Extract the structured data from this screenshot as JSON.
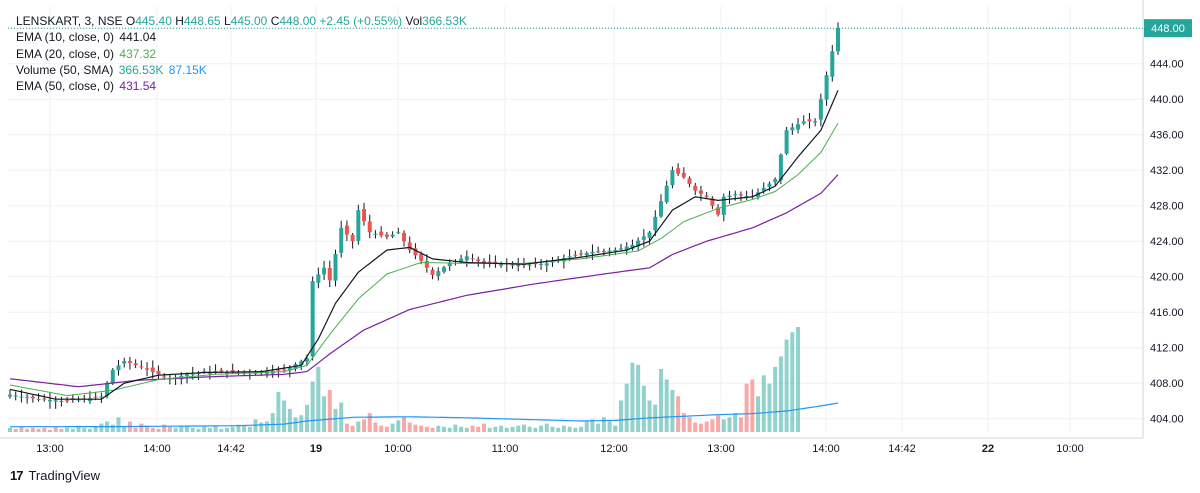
{
  "legend": {
    "symbol": "LENSKART, 3, NSE",
    "o_label": "O",
    "o": "445.40",
    "h_label": "H",
    "h": "448.65",
    "l_label": "L",
    "l": "445.00",
    "c_label": "C",
    "c": "448.00",
    "change": "+2.45 (+0.55%)",
    "vol_label": "Vol",
    "vol": "366.53K",
    "studies": [
      {
        "name": "EMA (10, close, 0)",
        "value": "441.04"
      },
      {
        "name": "EMA (20, close, 0)",
        "value": "437.32"
      },
      {
        "name": "Volume (50, SMA)",
        "value": "366.53K",
        "value2": "87.15K"
      },
      {
        "name": "EMA (50, close, 0)",
        "value": "431.54"
      }
    ]
  },
  "footer": {
    "brand": "TradingView",
    "logo": "tradingview-logo"
  },
  "colors": {
    "up": "#26a69a",
    "down": "#ef5350",
    "ema10": "#131722",
    "ema20": "#4caf50",
    "ema50": "#7b1fa2",
    "vol_sma": "#2196f3",
    "grid": "#eef0f3",
    "price_label": "#26a69a"
  },
  "chart_data": {
    "type": "candlestick",
    "symbol": "LENSKART",
    "interval": "3",
    "exchange": "NSE",
    "ylim": [
      402.5,
      450.5
    ],
    "y_ticks": [
      "404.00",
      "408.00",
      "412.00",
      "416.00",
      "420.00",
      "424.00",
      "428.00",
      "432.00",
      "436.00",
      "440.00",
      "444.00",
      "448.00"
    ],
    "x_ticks": [
      "13:00",
      "14:00",
      "14:42",
      "19",
      "10:00",
      "11:00",
      "12:00",
      "13:00",
      "14:00",
      "14:42",
      "22",
      "10:00"
    ],
    "last_price_label": "448.00",
    "last_price": 448.0,
    "close_path": [
      [
        0,
        406.7
      ],
      [
        4,
        406.3
      ],
      [
        9,
        406.0
      ],
      [
        13,
        406.2
      ],
      [
        16,
        406.5
      ],
      [
        18,
        409.5
      ],
      [
        20,
        410.5
      ],
      [
        23,
        409.8
      ],
      [
        26,
        409.0
      ],
      [
        28,
        408.5
      ],
      [
        31,
        409.0
      ],
      [
        35,
        409.3
      ],
      [
        39,
        409.3
      ],
      [
        43,
        409.2
      ],
      [
        48,
        409.5
      ],
      [
        52,
        410.8
      ],
      [
        53,
        419.5
      ],
      [
        55,
        421.0
      ],
      [
        56,
        419.6
      ],
      [
        58,
        425.5
      ],
      [
        60,
        424.0
      ],
      [
        61,
        427.5
      ],
      [
        63,
        425.0
      ],
      [
        66,
        424.5
      ],
      [
        68,
        425.0
      ],
      [
        70,
        423.0
      ],
      [
        72,
        421.8
      ],
      [
        74,
        420.2
      ],
      [
        77,
        421.5
      ],
      [
        80,
        422.3
      ],
      [
        83,
        421.5
      ],
      [
        86,
        421.4
      ],
      [
        90,
        421.3
      ],
      [
        94,
        421.5
      ],
      [
        98,
        422.3
      ],
      [
        102,
        422.8
      ],
      [
        106,
        423.0
      ],
      [
        109,
        423.6
      ],
      [
        112,
        425.0
      ],
      [
        114,
        428.5
      ],
      [
        116,
        432.0
      ],
      [
        118,
        431.2
      ],
      [
        120,
        429.7
      ],
      [
        122,
        429.0
      ],
      [
        124,
        427.0
      ],
      [
        125,
        429.0
      ],
      [
        127,
        429.3
      ],
      [
        130,
        429.0
      ],
      [
        134,
        431.0
      ],
      [
        136,
        436.5
      ],
      [
        139,
        437.5
      ],
      [
        141,
        437.5
      ],
      [
        142,
        440.0
      ],
      [
        144,
        445.4
      ],
      [
        145,
        448.0
      ]
    ],
    "ema10_path": [
      [
        0,
        407.3
      ],
      [
        8,
        406.2
      ],
      [
        16,
        406.2
      ],
      [
        20,
        408.0
      ],
      [
        26,
        408.9
      ],
      [
        34,
        409.2
      ],
      [
        44,
        409.3
      ],
      [
        51,
        410.0
      ],
      [
        54,
        413.0
      ],
      [
        57,
        417.0
      ],
      [
        61,
        420.5
      ],
      [
        66,
        423.0
      ],
      [
        70,
        423.3
      ],
      [
        74,
        422.0
      ],
      [
        80,
        421.6
      ],
      [
        90,
        421.4
      ],
      [
        100,
        422.2
      ],
      [
        108,
        423.0
      ],
      [
        112,
        424.0
      ],
      [
        116,
        427.5
      ],
      [
        120,
        429.0
      ],
      [
        124,
        428.6
      ],
      [
        130,
        429.0
      ],
      [
        134,
        430.2
      ],
      [
        138,
        433.5
      ],
      [
        142,
        436.5
      ],
      [
        145,
        441.0
      ]
    ],
    "ema20_path": [
      [
        0,
        407.8
      ],
      [
        10,
        406.6
      ],
      [
        18,
        407.2
      ],
      [
        26,
        408.4
      ],
      [
        36,
        409.0
      ],
      [
        48,
        409.3
      ],
      [
        52,
        410.0
      ],
      [
        56,
        413.5
      ],
      [
        61,
        417.5
      ],
      [
        66,
        420.3
      ],
      [
        72,
        421.6
      ],
      [
        80,
        421.5
      ],
      [
        90,
        421.5
      ],
      [
        100,
        422.0
      ],
      [
        110,
        422.9
      ],
      [
        114,
        424.3
      ],
      [
        118,
        426.2
      ],
      [
        124,
        427.7
      ],
      [
        130,
        428.7
      ],
      [
        134,
        429.6
      ],
      [
        138,
        431.5
      ],
      [
        142,
        434.0
      ],
      [
        145,
        437.3
      ]
    ],
    "ema50_path": [
      [
        0,
        408.5
      ],
      [
        12,
        407.6
      ],
      [
        22,
        408.3
      ],
      [
        34,
        408.7
      ],
      [
        48,
        409.0
      ],
      [
        52,
        409.3
      ],
      [
        56,
        411.3
      ],
      [
        62,
        414.0
      ],
      [
        70,
        416.3
      ],
      [
        80,
        417.9
      ],
      [
        92,
        419.2
      ],
      [
        104,
        420.3
      ],
      [
        112,
        421.0
      ],
      [
        116,
        422.5
      ],
      [
        122,
        424.0
      ],
      [
        130,
        425.5
      ],
      [
        136,
        427.2
      ],
      [
        142,
        429.4
      ],
      [
        145,
        431.5
      ]
    ],
    "volume_heights": [
      4,
      3,
      5,
      3,
      4,
      3,
      4,
      2,
      5,
      3,
      4,
      3,
      6,
      4,
      3,
      5,
      8,
      10,
      7,
      14,
      5,
      10,
      4,
      8,
      6,
      4,
      3,
      7,
      5,
      4,
      5,
      6,
      4,
      3,
      5,
      4,
      6,
      3,
      4,
      5,
      7,
      6,
      5,
      12,
      9,
      10,
      18,
      38,
      30,
      22,
      14,
      16,
      26,
      48,
      62,
      34,
      40,
      22,
      28,
      8,
      6,
      10,
      12,
      18,
      9,
      6,
      5,
      8,
      11,
      14,
      9,
      7,
      6,
      5,
      4,
      6,
      5,
      4,
      7,
      5,
      4,
      6,
      5,
      8,
      4,
      5,
      6,
      4,
      5,
      6,
      7,
      5,
      4,
      6,
      8,
      5,
      4,
      6,
      5,
      4,
      5,
      10,
      12,
      8,
      14,
      10,
      6,
      30,
      46,
      66,
      64,
      44,
      30,
      26,
      60,
      50,
      40,
      34,
      18,
      14,
      9,
      8,
      10,
      12,
      16,
      12,
      14,
      18,
      14,
      46,
      50,
      34,
      54,
      46,
      62,
      72,
      88,
      95,
      100
    ],
    "volume_sma_path": [
      [
        0,
        5.0
      ],
      [
        20,
        5.2
      ],
      [
        40,
        6.0
      ],
      [
        48,
        7.5
      ],
      [
        52,
        10.5
      ],
      [
        60,
        14.0
      ],
      [
        70,
        14.5
      ],
      [
        80,
        13.5
      ],
      [
        90,
        12.0
      ],
      [
        100,
        10.5
      ],
      [
        106,
        11.0
      ],
      [
        112,
        13.5
      ],
      [
        118,
        15.0
      ],
      [
        124,
        16.5
      ],
      [
        130,
        17.5
      ],
      [
        136,
        20.0
      ],
      [
        141,
        24.0
      ],
      [
        145,
        27.5
      ]
    ]
  }
}
